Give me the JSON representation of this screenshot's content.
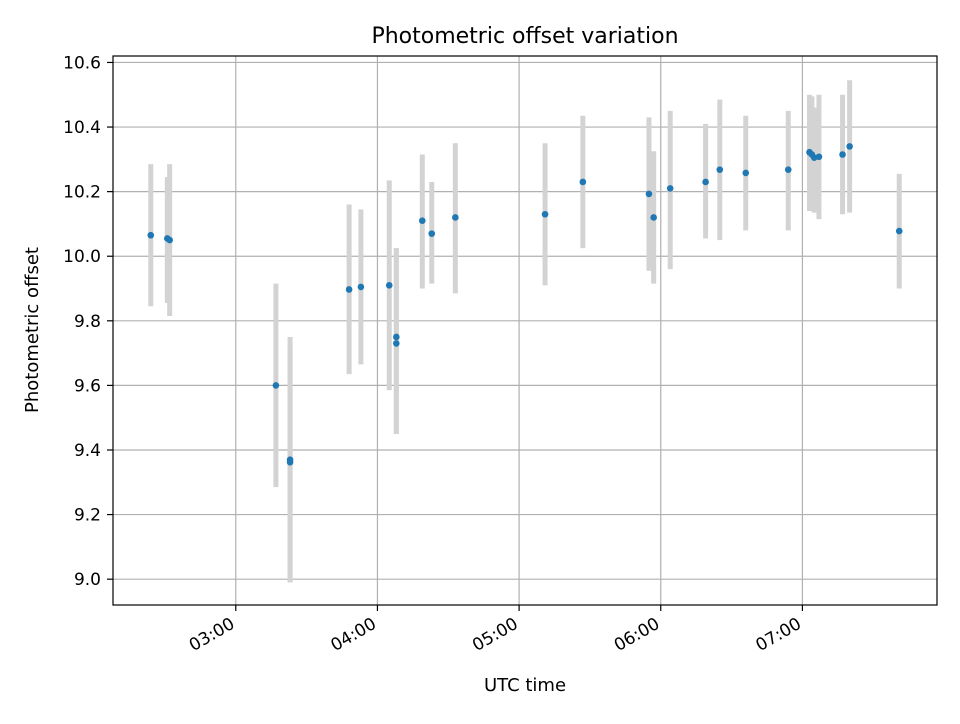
{
  "chart_data": {
    "type": "scatter",
    "title": "Photometric offset variation",
    "xlabel": "UTC time",
    "ylabel": "Photometric offset",
    "x_is_time": true,
    "xlim": [
      "02:08",
      "07:57"
    ],
    "ylim": [
      8.92,
      10.62
    ],
    "x_ticks": [
      "03:00",
      "04:00",
      "05:00",
      "06:00",
      "07:00"
    ],
    "y_ticks": [
      "9.0",
      "9.2",
      "9.4",
      "9.6",
      "9.8",
      "10.0",
      "10.2",
      "10.4",
      "10.6"
    ],
    "grid": true,
    "legend": "none",
    "colors": {
      "point": "#1f77b4",
      "errorbar": "#d3d3d3",
      "grid": "#b0b0b0",
      "axis": "#000000"
    },
    "series": [
      {
        "points": [
          {
            "x": "02:24",
            "y": 10.065,
            "ylow": 9.845,
            "yhigh": 10.285
          },
          {
            "x": "02:31",
            "y": 10.055,
            "ylow": 9.855,
            "yhigh": 10.245
          },
          {
            "x": "02:32",
            "y": 10.05,
            "ylow": 9.815,
            "yhigh": 10.285
          },
          {
            "x": "03:17",
            "y": 9.6,
            "ylow": 9.285,
            "yhigh": 9.915
          },
          {
            "x": "03:23",
            "y": 9.37,
            "ylow": 8.99,
            "yhigh": 9.75
          },
          {
            "x": "03:23",
            "y": 9.362,
            "ylow": 8.99,
            "yhigh": 9.72
          },
          {
            "x": "03:48",
            "y": 9.897,
            "ylow": 9.635,
            "yhigh": 10.16
          },
          {
            "x": "03:53",
            "y": 9.905,
            "ylow": 9.665,
            "yhigh": 10.145
          },
          {
            "x": "04:05",
            "y": 9.91,
            "ylow": 9.585,
            "yhigh": 10.235
          },
          {
            "x": "04:08",
            "y": 9.75,
            "ylow": 9.45,
            "yhigh": 10.025
          },
          {
            "x": "04:08",
            "y": 9.73,
            "ylow": 9.45,
            "yhigh": 10.025
          },
          {
            "x": "04:19",
            "y": 10.11,
            "ylow": 9.9,
            "yhigh": 10.315
          },
          {
            "x": "04:23",
            "y": 10.07,
            "ylow": 9.915,
            "yhigh": 10.23
          },
          {
            "x": "04:33",
            "y": 10.12,
            "ylow": 9.885,
            "yhigh": 10.35
          },
          {
            "x": "05:11",
            "y": 10.13,
            "ylow": 9.91,
            "yhigh": 10.35
          },
          {
            "x": "05:27",
            "y": 10.23,
            "ylow": 10.025,
            "yhigh": 10.435
          },
          {
            "x": "05:55",
            "y": 10.193,
            "ylow": 9.955,
            "yhigh": 10.43
          },
          {
            "x": "05:57",
            "y": 10.12,
            "ylow": 9.915,
            "yhigh": 10.325
          },
          {
            "x": "06:04",
            "y": 10.21,
            "ylow": 9.96,
            "yhigh": 10.45
          },
          {
            "x": "06:19",
            "y": 10.23,
            "ylow": 10.055,
            "yhigh": 10.41
          },
          {
            "x": "06:25",
            "y": 10.268,
            "ylow": 10.05,
            "yhigh": 10.485
          },
          {
            "x": "06:36",
            "y": 10.258,
            "ylow": 10.08,
            "yhigh": 10.435
          },
          {
            "x": "06:54",
            "y": 10.268,
            "ylow": 10.08,
            "yhigh": 10.45
          },
          {
            "x": "07:03",
            "y": 10.322,
            "ylow": 10.14,
            "yhigh": 10.5
          },
          {
            "x": "07:04",
            "y": 10.315,
            "ylow": 10.145,
            "yhigh": 10.495
          },
          {
            "x": "07:05",
            "y": 10.305,
            "ylow": 10.135,
            "yhigh": 10.46
          },
          {
            "x": "07:07",
            "y": 10.308,
            "ylow": 10.115,
            "yhigh": 10.5
          },
          {
            "x": "07:17",
            "y": 10.315,
            "ylow": 10.13,
            "yhigh": 10.5
          },
          {
            "x": "07:20",
            "y": 10.34,
            "ylow": 10.135,
            "yhigh": 10.545
          },
          {
            "x": "07:41",
            "y": 10.078,
            "ylow": 9.9,
            "yhigh": 10.255
          }
        ]
      }
    ]
  }
}
